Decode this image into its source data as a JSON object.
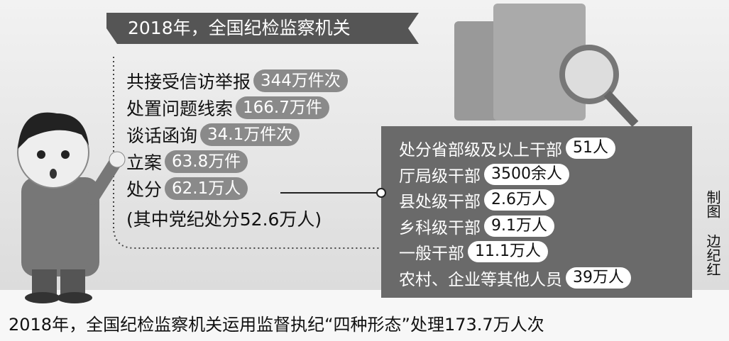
{
  "header": {
    "title": "2018年，全国纪检监察机关"
  },
  "left_items": [
    {
      "label": "共接受信访举报",
      "value": "344万件次"
    },
    {
      "label": "处置问题线索",
      "value": "166.7万件"
    },
    {
      "label": "谈话函询",
      "value": "34.1万件次"
    },
    {
      "label": "立案",
      "value": "63.8万件"
    },
    {
      "label": "处分",
      "value": "62.1万人"
    }
  ],
  "note": "(其中党纪处分52.6万人)",
  "right_items": [
    {
      "label": "处分省部级及以上干部",
      "value": "51人"
    },
    {
      "label": "厅局级干部",
      "value": "3500余人"
    },
    {
      "label": "县处级干部",
      "value": "2.6万人"
    },
    {
      "label": "乡科级干部",
      "value": "9.1万人"
    },
    {
      "label": "一般干部",
      "value": "11.1万人"
    },
    {
      "label": "农村、企业等其他人员",
      "value": "39万人"
    }
  ],
  "credit": [
    "制图",
    "边纪红"
  ],
  "caption": "2018年，全国纪检监察机关运用监督执纪“四种形态”处理173.7万人次"
}
